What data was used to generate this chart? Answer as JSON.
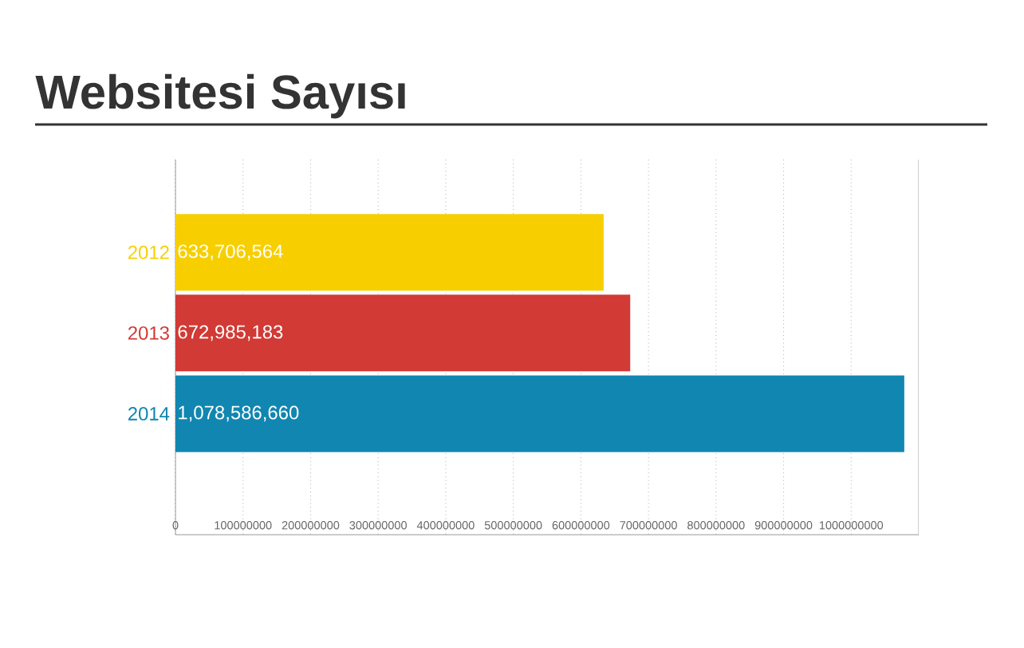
{
  "chart_data": {
    "type": "bar",
    "orientation": "horizontal",
    "title": "Websitesi Sayısı",
    "categories": [
      "2012",
      "2013",
      "2014"
    ],
    "values": [
      633706564,
      672985183,
      1078586660
    ],
    "value_labels": [
      "633,706,564",
      "672,985,183",
      "1,078,586,660"
    ],
    "colors": [
      "#f7cf00",
      "#d13a35",
      "#1186b0"
    ],
    "xlim": [
      0,
      1100000000
    ],
    "xticks": [
      0,
      100000000,
      200000000,
      300000000,
      400000000,
      500000000,
      600000000,
      700000000,
      800000000,
      900000000,
      1000000000
    ],
    "grid": "x"
  }
}
